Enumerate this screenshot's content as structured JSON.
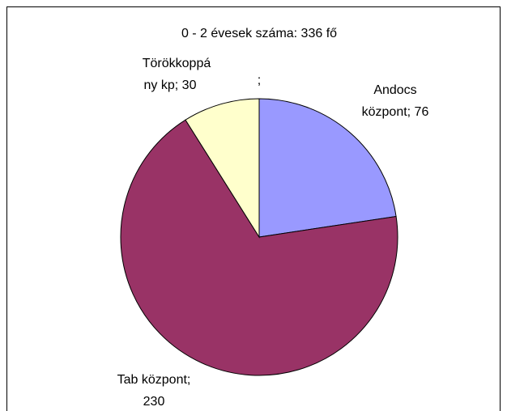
{
  "chart_data": {
    "type": "pie",
    "title": "0 - 2 évesek száma: 336 fő",
    "categories": [
      "Andocs központ",
      "Tab központ",
      "Törökkoppány kp",
      null
    ],
    "values": [
      76,
      230,
      30,
      null
    ],
    "value_labels": [
      [
        "Andocs",
        "központ; 76"
      ],
      [
        "Tab központ;",
        "230"
      ],
      [
        "Törökkoppá",
        "ny kp; 30"
      ],
      [
        ";"
      ]
    ],
    "colors": [
      "#9999ff",
      "#993366",
      "#ffffcc",
      "#ffffff"
    ]
  }
}
